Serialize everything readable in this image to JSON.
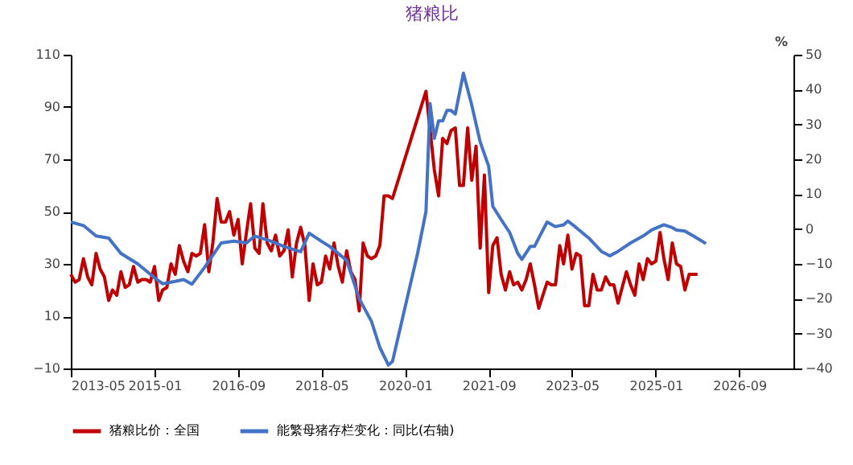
{
  "chart_data": {
    "type": "line",
    "title": "猪粮比",
    "y2label": "%",
    "legend": "bottom",
    "xlim": [
      "2013-05",
      "2027-10"
    ],
    "xticks": [
      "2013-05",
      "2015-01",
      "2016-09",
      "2018-05",
      "2020-01",
      "2021-09",
      "2023-05",
      "2025-01",
      "2026-09"
    ],
    "ylim": [
      -10,
      110
    ],
    "yticks": [
      -10,
      10,
      30,
      50,
      70,
      90,
      110
    ],
    "y2lim": [
      -40,
      50
    ],
    "y2ticks": [
      -40,
      -30,
      -20,
      -10,
      0,
      10,
      20,
      30,
      40,
      50
    ],
    "series": [
      {
        "name": "猪粮比价：全国",
        "color": "#c00000",
        "x": [
          "2013-05",
          "2013-06",
          "2013-07",
          "2013-08",
          "2013-09",
          "2013-10",
          "2013-11",
          "2013-12",
          "2014-01",
          "2014-02",
          "2014-03",
          "2014-04",
          "2014-05",
          "2014-06",
          "2014-07",
          "2014-08",
          "2014-09",
          "2014-10",
          "2014-11",
          "2014-12",
          "2015-01",
          "2015-02",
          "2015-03",
          "2015-04",
          "2015-05",
          "2015-06",
          "2015-07",
          "2015-08",
          "2015-09",
          "2015-10",
          "2015-11",
          "2015-12",
          "2016-01",
          "2016-02",
          "2016-03",
          "2016-04",
          "2016-05",
          "2016-06",
          "2016-07",
          "2016-08",
          "2016-09",
          "2016-10",
          "2016-11",
          "2016-12",
          "2017-01",
          "2017-02",
          "2017-03",
          "2017-04",
          "2017-05",
          "2017-06",
          "2017-07",
          "2017-08",
          "2017-09",
          "2017-10",
          "2017-11",
          "2017-12",
          "2018-01",
          "2018-02",
          "2018-03",
          "2018-04",
          "2018-05",
          "2018-06",
          "2018-07",
          "2018-08",
          "2018-09",
          "2018-10",
          "2018-11",
          "2018-12",
          "2019-01",
          "2019-02",
          "2019-03",
          "2019-04",
          "2019-05",
          "2019-06",
          "2019-07",
          "2019-08",
          "2019-09",
          "2019-10",
          "2020-06",
          "2020-08",
          "2020-09",
          "2020-10",
          "2020-11",
          "2020-12",
          "2021-01",
          "2021-02",
          "2021-03",
          "2021-04",
          "2021-05",
          "2021-06",
          "2021-07",
          "2021-08",
          "2021-09",
          "2021-10",
          "2021-11",
          "2021-12",
          "2022-01",
          "2022-02",
          "2022-03",
          "2022-04",
          "2022-05",
          "2022-06",
          "2022-07",
          "2022-08",
          "2022-09",
          "2022-10",
          "2022-11",
          "2022-12",
          "2023-01",
          "2023-02",
          "2023-03",
          "2023-04",
          "2023-05",
          "2023-06",
          "2023-07",
          "2023-08",
          "2023-09",
          "2023-10",
          "2023-11",
          "2023-12",
          "2024-01",
          "2024-02",
          "2024-03",
          "2024-04",
          "2024-05",
          "2024-06",
          "2024-07",
          "2024-08",
          "2024-09",
          "2024-10",
          "2024-11",
          "2024-12",
          "2025-01",
          "2025-02",
          "2025-03",
          "2025-04",
          "2025-05",
          "2025-06",
          "2025-07",
          "2025-08",
          "2025-09",
          "2025-11"
        ],
        "values": [
          26,
          23,
          24,
          32,
          25,
          22,
          34,
          28,
          25,
          16,
          20,
          18,
          27,
          21,
          22,
          29,
          23,
          24,
          24,
          23,
          29,
          16,
          20,
          21,
          30,
          26,
          37,
          31,
          27,
          34,
          33,
          34,
          45,
          27,
          38,
          55,
          46,
          46,
          50,
          41,
          47,
          30,
          42,
          53,
          36,
          34,
          53,
          38,
          35,
          41,
          33,
          35,
          43,
          25,
          38,
          44,
          37,
          16,
          30,
          22,
          23,
          33,
          28,
          38,
          29,
          23,
          35,
          27,
          24,
          12,
          38,
          33,
          32,
          33,
          37,
          56,
          56,
          55,
          96,
          66,
          56,
          78,
          76,
          81,
          82,
          60,
          60,
          82,
          62,
          75,
          36,
          64,
          19,
          37,
          40,
          26,
          20,
          27,
          22,
          23,
          20,
          24,
          30,
          22,
          13,
          18,
          23,
          22,
          22,
          37,
          30,
          41,
          28,
          34,
          33,
          14,
          14,
          26,
          20,
          20,
          25,
          22,
          22,
          15,
          21,
          27,
          22,
          18,
          30,
          24,
          32,
          30,
          31,
          42,
          32,
          24,
          38,
          30,
          29,
          20,
          26,
          26
        ]
      },
      {
        "name": "能繁母猪存栏变化：同比(右轴)",
        "color": "#4472c4",
        "axis": "y2",
        "x": [
          "2013-05",
          "2013-08",
          "2013-11",
          "2014-02",
          "2014-05",
          "2014-09",
          "2015-01",
          "2015-03",
          "2015-06",
          "2015-08",
          "2015-10",
          "2016-01",
          "2016-05",
          "2016-08",
          "2016-11",
          "2017-01",
          "2017-05",
          "2017-08",
          "2017-12",
          "2018-02",
          "2018-05",
          "2018-07",
          "2018-11",
          "2019-02",
          "2019-05",
          "2019-07",
          "2019-09",
          "2019-10",
          "2020-04",
          "2020-06",
          "2020-07",
          "2020-08",
          "2020-09",
          "2020-10",
          "2020-11",
          "2020-12",
          "2021-01",
          "2021-03",
          "2021-05",
          "2021-07",
          "2021-09",
          "2021-10",
          "2021-12",
          "2022-02",
          "2022-04",
          "2022-05",
          "2022-07",
          "2022-08",
          "2022-09",
          "2022-11",
          "2023-01",
          "2023-03",
          "2023-04",
          "2023-06",
          "2023-09",
          "2023-12",
          "2024-02",
          "2024-04",
          "2024-07",
          "2024-10",
          "2024-12",
          "2025-03",
          "2025-05",
          "2025-06",
          "2025-08",
          "2025-10",
          "2025-12",
          "2026-01"
        ],
        "values": [
          2,
          1,
          -2,
          -2.6,
          -7,
          -10,
          -14,
          -15.7,
          -15,
          -14.5,
          -15.8,
          -11,
          -4,
          -3.5,
          -4,
          -2,
          -3.5,
          -5,
          -6.5,
          -1.2,
          -3.5,
          -5,
          -9,
          -20,
          -26.5,
          -34,
          -39,
          -38,
          -7,
          5,
          36,
          26,
          31,
          31,
          34,
          34,
          33,
          44.7,
          35.5,
          25,
          18,
          6.5,
          2.7,
          -1,
          -7,
          -8.7,
          -5,
          -5,
          -2.6,
          2,
          0.7,
          1.2,
          2.3,
          0.4,
          -2.6,
          -6.4,
          -7.7,
          -6.4,
          -4,
          -2,
          -0.3,
          1.2,
          0.4,
          -0.3,
          -0.6,
          -2,
          -3.4,
          -4.2
        ]
      }
    ]
  }
}
